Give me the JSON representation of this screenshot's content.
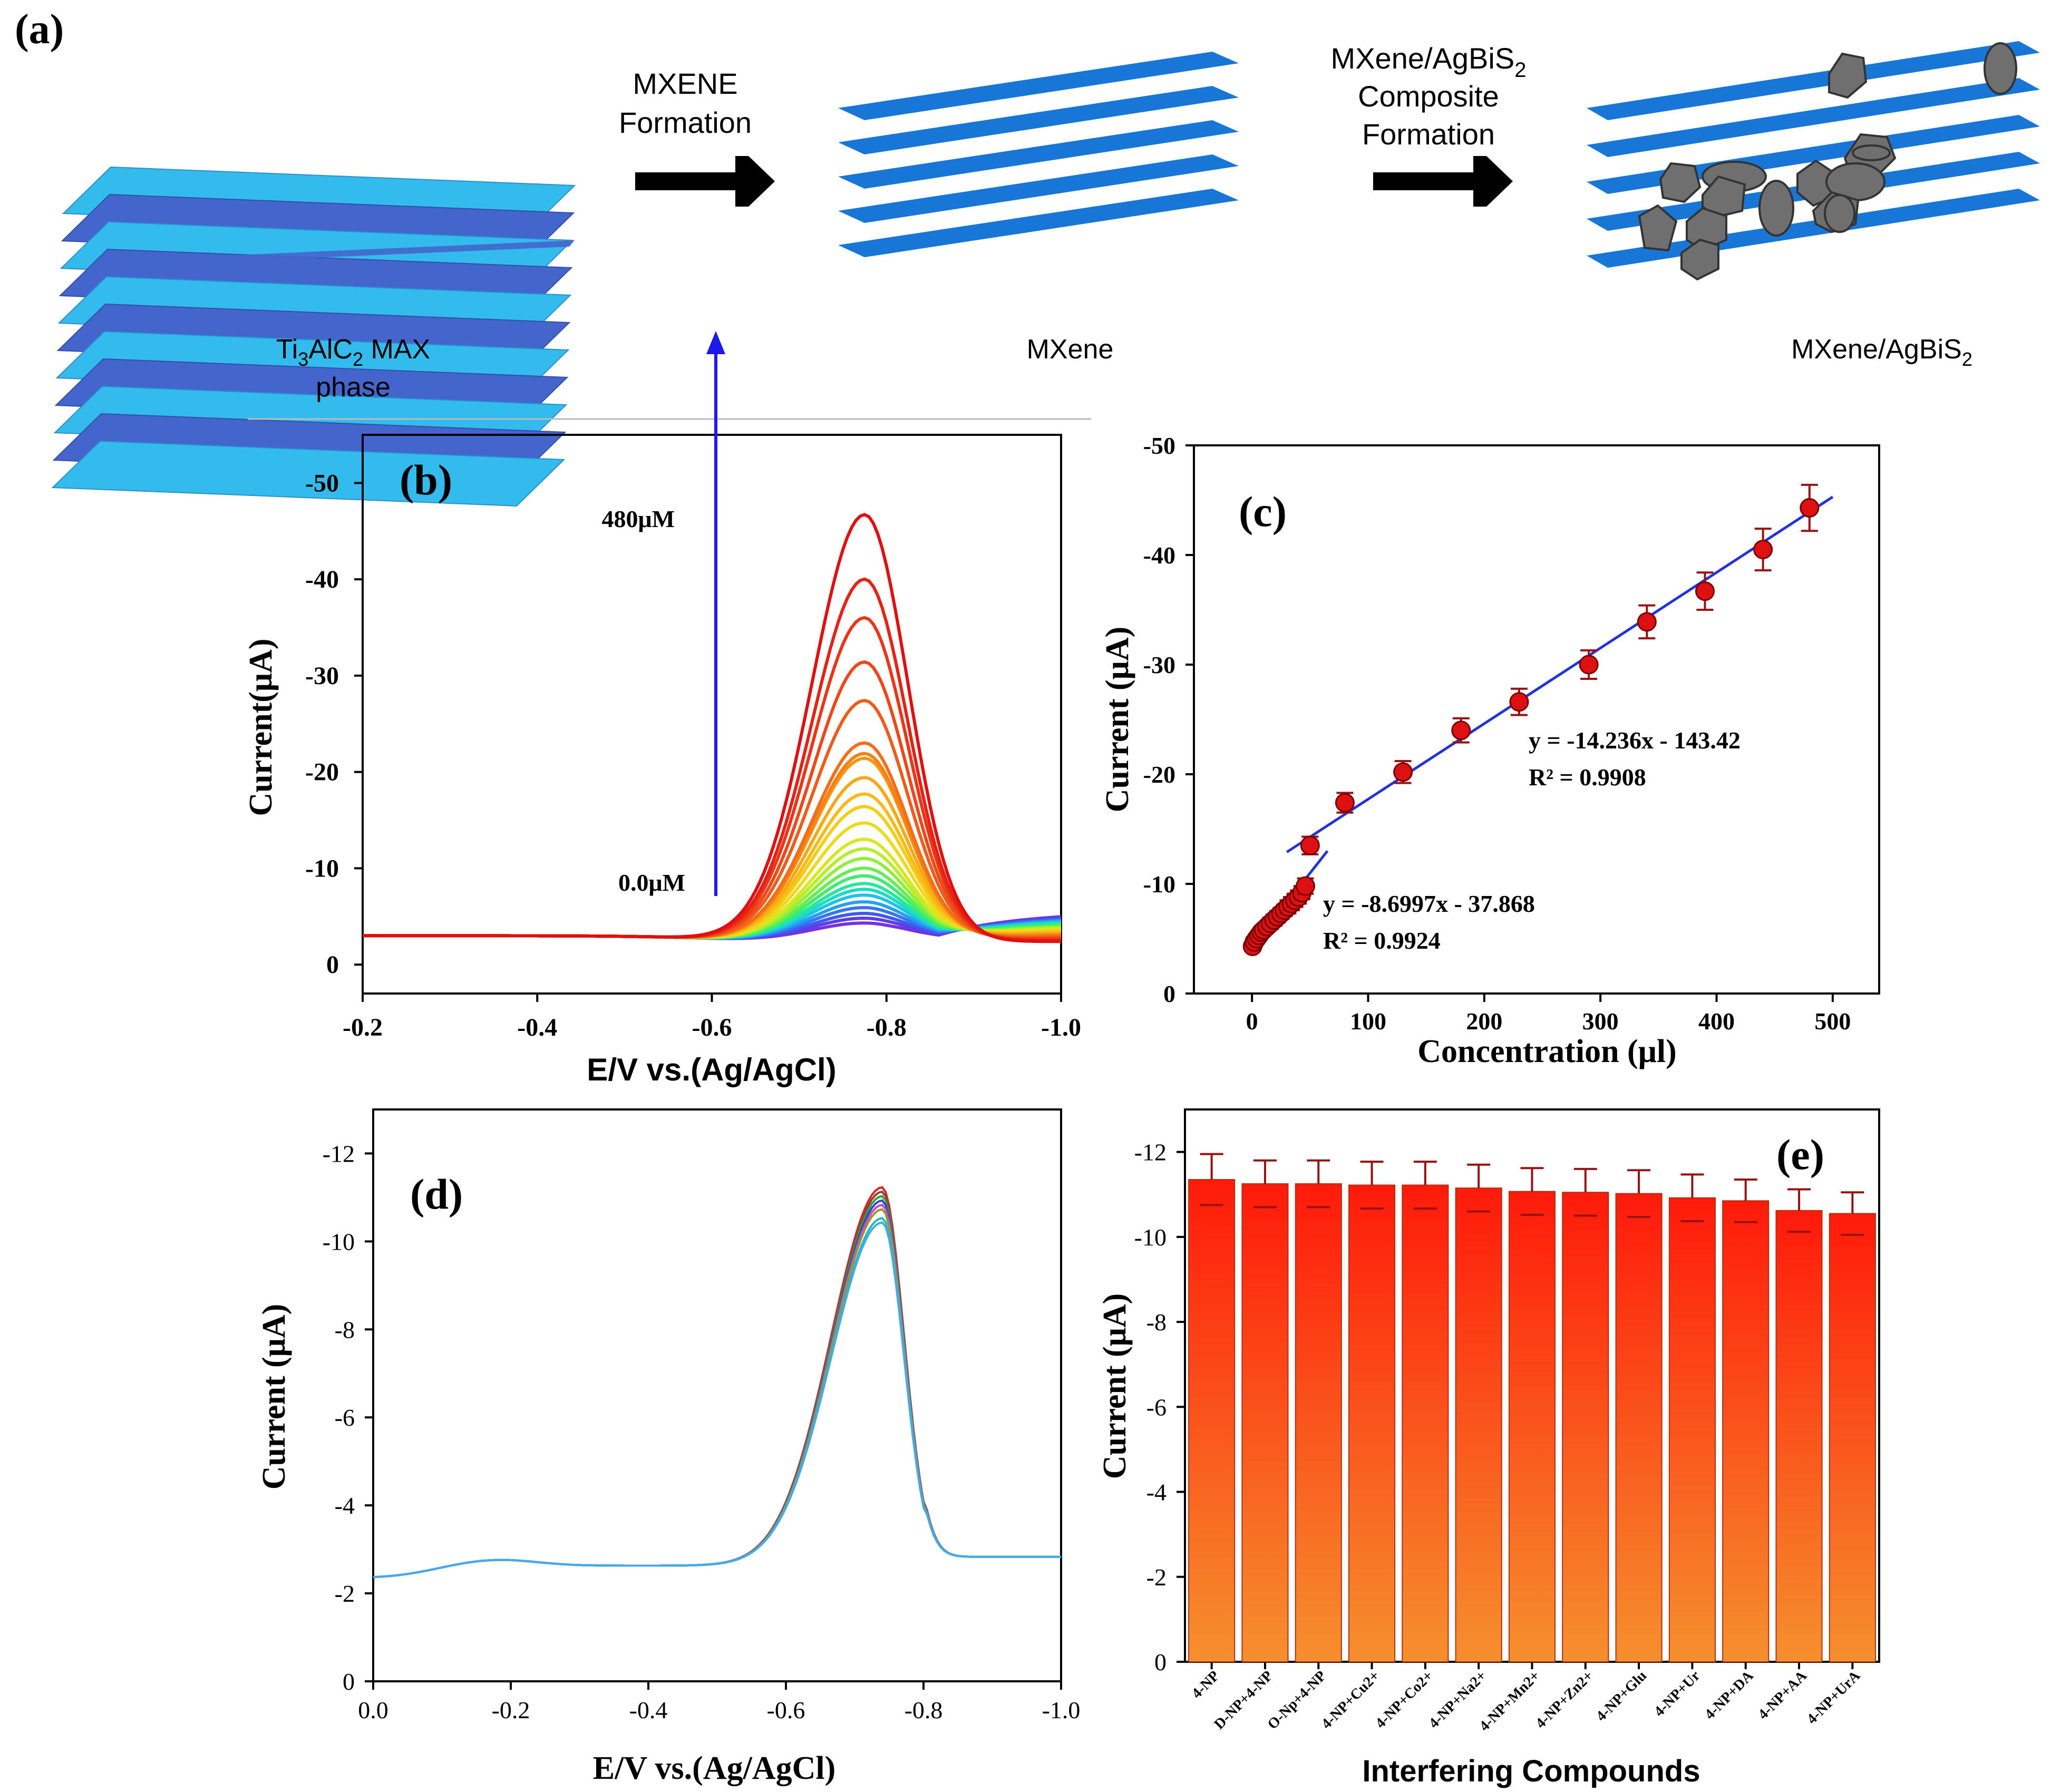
{
  "panel_labels": {
    "a": "(a)",
    "b": "(b)",
    "c": "(c)",
    "d": "(d)",
    "e": "(e)"
  },
  "schematic": {
    "step1": {
      "line1": "MXENE",
      "line2": "Formation"
    },
    "step2": {
      "line1_base": "MXene/AgBiS",
      "line1_sub": "2",
      "line2": "Composite",
      "line3": "Formation"
    },
    "labels": {
      "max_base1": "Ti",
      "max_sub1": "3",
      "max_mid": "AlC",
      "max_sub2": "2",
      "max_tail": " MAX",
      "max_line2": "phase",
      "mxene": "MXene",
      "comp_base": "MXene/AgBiS",
      "comp_sub": "2"
    },
    "colors": {
      "max_dark": "#4466cc",
      "max_light": "#33bbee",
      "mxene": "#1877d6",
      "particle": "#6f6f6f",
      "arrow": "#000000"
    }
  },
  "chart_data": [
    {
      "panel": "b",
      "type": "line",
      "xlabel": "E/V vs.(Ag/AgCl)",
      "ylabel": "Current(μA)",
      "xlim": [
        -0.2,
        -1.0
      ],
      "ylim": [
        3,
        -55
      ],
      "xticks": [
        "-0.2",
        "-0.4",
        "-0.6",
        "-0.8",
        "-1.0"
      ],
      "yticks": [
        "0",
        "-10",
        "-20",
        "-30",
        "-40",
        "-50"
      ],
      "annotation_top": "480μM",
      "annotation_bottom": "0.0μM",
      "arrow_color": "#1a1aee",
      "peak_potential": -0.775,
      "series_peaks": [
        -47.5,
        -40.8,
        -36.8,
        -32.2,
        -28.2,
        -23.8,
        -22.7,
        -22.2,
        -20.2,
        -18.5,
        -17.2,
        -15.5,
        -13.8,
        -12.8,
        -11.8,
        -10.8,
        -10.0,
        -9.2,
        -8.6,
        -8.0,
        -7.3,
        -6.7,
        -6.1,
        -5.6,
        -5.1
      ],
      "series_colors": [
        "#e01010",
        "#e62215",
        "#eb3517",
        "#ee4818",
        "#f15b19",
        "#f46e17",
        "#f68215",
        "#f79514",
        "#f8a814",
        "#f8bb14",
        "#f5cc16",
        "#ecdb1c",
        "#d9e622",
        "#b7ed2c",
        "#8ff03c",
        "#63ef52",
        "#3eed6e",
        "#27e89a",
        "#1cdcc6",
        "#1ec3e7",
        "#279ff0",
        "#3477f2",
        "#4257ee",
        "#5a3fe7",
        "#7a30e0"
      ]
    },
    {
      "panel": "c",
      "type": "scatter",
      "xlabel": "Concentration (μl)",
      "ylabel": "Current (μA)",
      "xlim": [
        -50,
        540
      ],
      "ylim": [
        0,
        -50
      ],
      "xticks": [
        "0",
        "100",
        "200",
        "300",
        "400",
        "500"
      ],
      "yticks": [
        "0",
        "-10",
        "-20",
        "-30",
        "-40",
        "-50"
      ],
      "x": [
        0.5,
        2,
        4,
        6,
        8,
        10,
        13,
        16,
        19,
        22,
        25,
        28,
        31,
        34,
        37,
        40,
        43,
        46,
        50,
        80,
        130,
        180,
        230,
        290,
        340,
        390,
        440,
        480
      ],
      "y": [
        -4.3,
        -4.7,
        -5.0,
        -5.3,
        -5.6,
        -5.8,
        -6.1,
        -6.4,
        -6.7,
        -7.0,
        -7.3,
        -7.6,
        -7.9,
        -8.2,
        -8.5,
        -8.8,
        -9.2,
        -9.8,
        -13.5,
        -17.4,
        -20.2,
        -24.0,
        -26.6,
        -30.0,
        -33.9,
        -36.7,
        -40.5,
        -44.3
      ],
      "errors": [
        0.4,
        0.4,
        0.4,
        0.4,
        0.4,
        0.4,
        0.4,
        0.5,
        0.5,
        0.5,
        0.5,
        0.5,
        0.6,
        0.6,
        0.6,
        0.6,
        0.6,
        0.7,
        0.8,
        0.9,
        1.0,
        1.1,
        1.2,
        1.3,
        1.5,
        1.7,
        1.9,
        2.1
      ],
      "fit1": {
        "equation": "y = -8.6997x - 37.868",
        "r2": "R² = 0.9924",
        "x_range": [
          -2,
          65
        ],
        "y_range": [
          -4.0,
          -13.0
        ]
      },
      "fit2": {
        "equation": "y = -14.236x - 143.42",
        "r2": "R² = 0.9908",
        "x_range": [
          30,
          500
        ],
        "y_range": [
          -12.9,
          -45.3
        ]
      },
      "marker_color": "#dd1111",
      "line_color": "#2233dd"
    },
    {
      "panel": "d",
      "type": "line",
      "xlabel": "E/V vs.(Ag/AgCl)",
      "ylabel": "Current (μA)",
      "xlim": [
        0.0,
        -1.0
      ],
      "ylim": [
        0,
        -13
      ],
      "xticks": [
        "0.0",
        "-0.2",
        "-0.4",
        "-0.6",
        "-0.8",
        "-1.0"
      ],
      "yticks": [
        "0",
        "-2",
        "-4",
        "-6",
        "-8",
        "-10",
        "-12"
      ],
      "peak_potential": -0.74,
      "series_peaks": [
        -11.3,
        -11.2,
        -11.1,
        -11.0,
        -10.9,
        -10.8,
        -10.6,
        -10.5
      ],
      "series_colors": [
        "#dd2222",
        "#9a3b3b",
        "#22aa33",
        "#3344cc",
        "#cc44cc",
        "#999922",
        "#22bbbb",
        "#44aaee"
      ]
    },
    {
      "panel": "e",
      "type": "bar",
      "xlabel": "Interfering Compounds",
      "ylabel": "Current (μA)",
      "ylim": [
        0,
        -13
      ],
      "yticks": [
        "0",
        "-2",
        "-4",
        "-6",
        "-8",
        "-10",
        "-12"
      ],
      "categories": [
        "4-NP",
        "D-NP+4-NP",
        "O-Np+4-NP",
        "4-NP+Cu2+",
        "4-NP+Co2+",
        "4-NP+Na2+",
        "4-NP+Mn2+",
        "4-NP+Zn2+",
        "4-NP+Glu",
        "4-NP+Ur",
        "4-NP+DA",
        "4-NP+AA",
        "4-NP+UrA"
      ],
      "values": [
        -11.35,
        -11.25,
        -11.25,
        -11.22,
        -11.22,
        -11.15,
        -11.07,
        -11.05,
        -11.02,
        -10.92,
        -10.85,
        -10.62,
        -10.55
      ],
      "errors": [
        0.6,
        0.55,
        0.55,
        0.55,
        0.55,
        0.55,
        0.55,
        0.55,
        0.55,
        0.55,
        0.5,
        0.5,
        0.5
      ],
      "bar_top_color": "#ff1a0a",
      "bar_bottom_color": "#f5902e",
      "error_color": "#991111"
    }
  ]
}
